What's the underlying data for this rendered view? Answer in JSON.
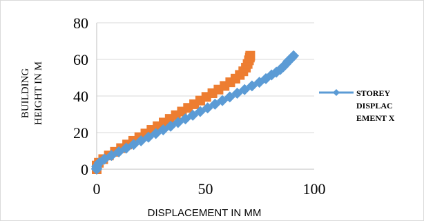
{
  "chart_data": {
    "type": "scatter",
    "title": "",
    "xlabel": "DISPLACEMENT IN MM",
    "ylabel_lines": [
      "BUILDING",
      "HEIGHT IN M"
    ],
    "xlim": [
      0,
      100
    ],
    "ylim": [
      0,
      80
    ],
    "x_ticks": [
      "0",
      "50",
      "100"
    ],
    "y_ticks": [
      "0",
      "20",
      "40",
      "60",
      "80"
    ],
    "grid": "horizontal",
    "legend_position": "right",
    "series": [
      {
        "name": "STOREY DISPLACEMENT X",
        "legend_lines": [
          "STOREY",
          "DISPLAC",
          "EMENT X"
        ],
        "color": "#5b9bd5",
        "marker": "diamond",
        "line": true,
        "x": [
          0,
          0,
          0,
          1.2,
          3.6,
          6.8,
          10.2,
          13.6,
          17.0,
          20.4,
          23.8,
          27.2,
          30.6,
          34.0,
          37.4,
          40.8,
          44.2,
          47.6,
          51.0,
          54.4,
          57.8,
          61.2,
          64.6,
          68.0,
          71.4,
          74.8,
          77.8,
          80.4,
          82.6,
          84.4,
          85.8,
          87.0,
          88.0,
          89.0,
          89.8,
          90.5
        ],
        "y": [
          0,
          0.5,
          1.5,
          3.5,
          5.5,
          7.5,
          9.5,
          11.5,
          13.5,
          15.5,
          17.5,
          19.5,
          21.5,
          23.5,
          25.5,
          27.5,
          29.5,
          31.5,
          33.5,
          35.5,
          37.5,
          39.5,
          41.5,
          43.5,
          45.5,
          47.5,
          49.5,
          51.5,
          53.0,
          54.5,
          56.0,
          57.5,
          59.0,
          60.0,
          61.0,
          62.0
        ]
      },
      {
        "name": "",
        "color": "#ed7d31",
        "marker": "square",
        "line": false,
        "x": [
          0,
          0,
          0,
          1.0,
          3.0,
          5.6,
          8.4,
          11.2,
          14.0,
          16.8,
          19.6,
          22.4,
          25.2,
          28.0,
          30.8,
          33.6,
          36.4,
          39.2,
          42.0,
          44.8,
          47.6,
          50.4,
          53.2,
          56.0,
          58.8,
          61.4,
          63.8,
          65.8,
          67.4,
          68.6,
          69.4,
          70.0,
          70.4,
          70.6
        ],
        "y": [
          0,
          1.0,
          2.0,
          3.5,
          5.5,
          7.5,
          9.5,
          11.5,
          13.5,
          15.5,
          17.5,
          19.5,
          21.5,
          23.5,
          25.5,
          27.5,
          29.5,
          31.5,
          33.5,
          35.5,
          37.5,
          39.5,
          41.5,
          43.5,
          45.5,
          47.5,
          49.5,
          51.5,
          53.5,
          55.5,
          57.5,
          59.5,
          61.0,
          62.0
        ]
      }
    ]
  }
}
